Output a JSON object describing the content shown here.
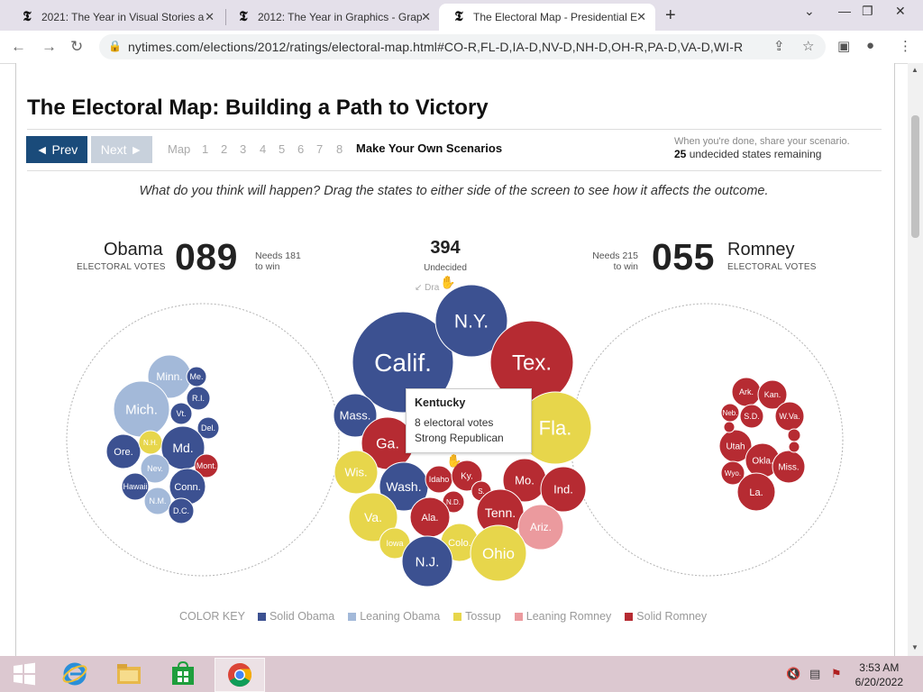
{
  "browser": {
    "tabs": [
      {
        "title": "2021: The Year in Visual Stories a",
        "favicon": "𝕿"
      },
      {
        "title": "2012: The Year in Graphics - Grap",
        "favicon": "𝕿"
      },
      {
        "title": "The Electoral Map - Presidential E",
        "favicon": "𝕿"
      }
    ],
    "url": "nytimes.com/elections/2012/ratings/electoral-map.html#CO-R,FL-D,IA-D,NV-D,NH-D,OH-R,PA-D,VA-D,WI-R"
  },
  "page": {
    "headline": "The Electoral Map: Building a Path to Victory",
    "prev_label": "◄ Prev",
    "next_label": "Next ►",
    "map_label": "Map",
    "steps": [
      "1",
      "2",
      "3",
      "4",
      "5",
      "6",
      "7",
      "8"
    ],
    "scenarios_label": "Make Your Own Scenarios",
    "share_text": "When you're done, share your scenario.",
    "remaining_count": "25",
    "remaining_text": " undecided states remaining",
    "instruction": "What do you think will happen? Drag the states to either side of the screen to see how it affects the outcome.",
    "obama": {
      "name": "Obama",
      "ev_label": "ELECTORAL VOTES",
      "votes": "089",
      "needs_1": "Needs 181",
      "needs_2": "to win"
    },
    "romney": {
      "name": "Romney",
      "ev_label": "ELECTORAL VOTES",
      "votes": "055",
      "needs_1": "Needs 215",
      "needs_2": "to win"
    },
    "undecided": {
      "count": "394",
      "label": "Undecided"
    },
    "drag_hint": "Dra",
    "tooltip": {
      "title": "Kentucky",
      "votes": "8 electoral votes",
      "status": "Strong Republican"
    },
    "color_key": {
      "title": "COLOR KEY",
      "items": [
        {
          "label": "Solid Obama",
          "color": "#3c5191"
        },
        {
          "label": "Leaning Obama",
          "color": "#a3b9d9"
        },
        {
          "label": "Tossup",
          "color": "#e7d64b"
        },
        {
          "label": "Leaning Romney",
          "color": "#eb9a9e"
        },
        {
          "label": "Solid Romney",
          "color": "#b62b32"
        }
      ]
    }
  },
  "colors": {
    "solid_obama": "#3c5191",
    "leaning_obama": "#a3b9d9",
    "tossup": "#e7d64b",
    "leaning_romney": "#eb9a9e",
    "solid_romney": "#b62b32"
  },
  "bubbles": {
    "obama": [
      {
        "label": "Minn.",
        "cat": "leaning_obama"
      },
      {
        "label": "Me.",
        "cat": "solid_obama"
      },
      {
        "label": "Mich.",
        "cat": "leaning_obama"
      },
      {
        "label": "R.I.",
        "cat": "solid_obama"
      },
      {
        "label": "Vt.",
        "cat": "solid_obama"
      },
      {
        "label": "Del.",
        "cat": "solid_obama"
      },
      {
        "label": "Ore.",
        "cat": "solid_obama"
      },
      {
        "label": "N.H.",
        "cat": "tossup"
      },
      {
        "label": "Md.",
        "cat": "solid_obama"
      },
      {
        "label": "Mont.",
        "cat": "solid_romney"
      },
      {
        "label": "Nev.",
        "cat": "leaning_obama"
      },
      {
        "label": "Hawaii",
        "cat": "solid_obama"
      },
      {
        "label": "Conn.",
        "cat": "solid_obama"
      },
      {
        "label": "N.M.",
        "cat": "leaning_obama"
      },
      {
        "label": "D.C.",
        "cat": "solid_obama"
      }
    ],
    "undecided": [
      {
        "label": "Calif.",
        "cat": "solid_obama"
      },
      {
        "label": "N.Y.",
        "cat": "solid_obama"
      },
      {
        "label": "Tex.",
        "cat": "solid_romney"
      },
      {
        "label": "Mass.",
        "cat": "solid_obama"
      },
      {
        "label": "Ga.",
        "cat": "solid_romney"
      },
      {
        "label": "Fla.",
        "cat": "tossup"
      },
      {
        "label": "Wis.",
        "cat": "tossup"
      },
      {
        "label": "Wash.",
        "cat": "solid_obama"
      },
      {
        "label": "Idaho",
        "cat": "solid_romney"
      },
      {
        "label": "Ky.",
        "cat": "solid_romney"
      },
      {
        "label": "S.",
        "cat": "solid_romney"
      },
      {
        "label": "Mo.",
        "cat": "solid_romney"
      },
      {
        "label": "Ind.",
        "cat": "solid_romney"
      },
      {
        "label": "N.D.",
        "cat": "solid_romney"
      },
      {
        "label": "Va.",
        "cat": "tossup"
      },
      {
        "label": "Ala.",
        "cat": "solid_romney"
      },
      {
        "label": "Tenn.",
        "cat": "solid_romney"
      },
      {
        "label": "Ariz.",
        "cat": "leaning_romney"
      },
      {
        "label": "Iowa",
        "cat": "tossup"
      },
      {
        "label": "Colo.",
        "cat": "tossup"
      },
      {
        "label": "Ohio",
        "cat": "tossup"
      },
      {
        "label": "N.J.",
        "cat": "solid_obama"
      }
    ],
    "romney": [
      {
        "label": "Ark.",
        "cat": "solid_romney"
      },
      {
        "label": "Kan.",
        "cat": "solid_romney"
      },
      {
        "label": "Neb.",
        "cat": "solid_romney"
      },
      {
        "label": "S.D.",
        "cat": "solid_romney"
      },
      {
        "label": "W.Va.",
        "cat": "solid_romney"
      },
      {
        "label": "Utah",
        "cat": "solid_romney"
      },
      {
        "label": "Okla.",
        "cat": "solid_romney"
      },
      {
        "label": "Wyo.",
        "cat": "solid_romney"
      },
      {
        "label": "Miss.",
        "cat": "solid_romney"
      },
      {
        "label": "La.",
        "cat": "solid_romney"
      }
    ]
  },
  "taskbar": {
    "time": "3:53 AM",
    "date": "6/20/2022"
  }
}
